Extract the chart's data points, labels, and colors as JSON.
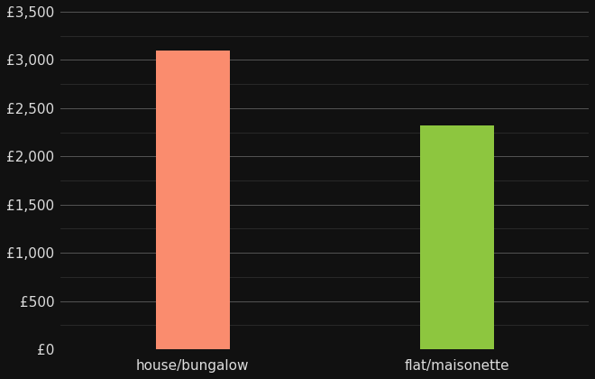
{
  "categories": [
    "house/bungalow",
    "flat/maisonette"
  ],
  "values": [
    3100,
    2320
  ],
  "bar_colors": [
    "#FA8C6E",
    "#8DC63F"
  ],
  "background_color": "#111111",
  "text_color": "#dddddd",
  "grid_color_major": "#555555",
  "grid_color_minor": "#333333",
  "ylim": [
    0,
    3500
  ],
  "yticks_major": [
    0,
    500,
    1000,
    1500,
    2000,
    2500,
    3000,
    3500
  ],
  "yticks_minor": [
    250,
    750,
    1250,
    1750,
    2250,
    2750,
    3250
  ],
  "ytick_labels": [
    "£0",
    "£500",
    "£1,000",
    "£1,500",
    "£2,000",
    "£2,500",
    "£3,000",
    "£3,500"
  ],
  "bar_width": 0.28,
  "x_positions": [
    1,
    2
  ],
  "xlim": [
    0.5,
    2.5
  ],
  "tick_fontsize": 11,
  "label_fontsize": 11
}
